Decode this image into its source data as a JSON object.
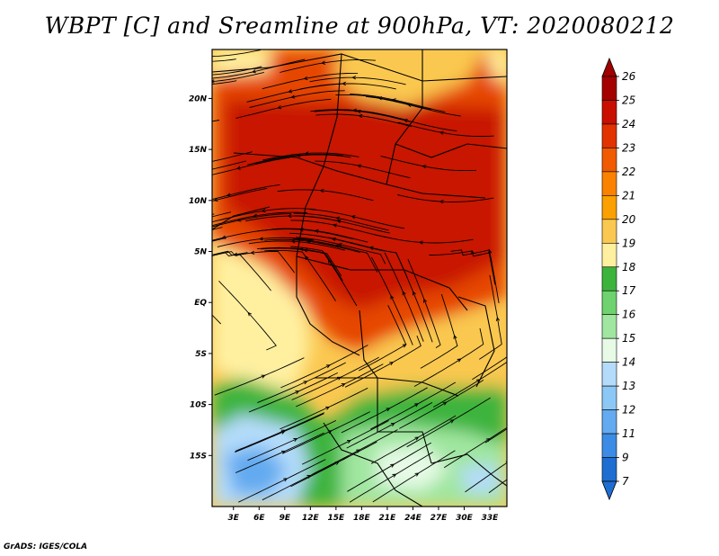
{
  "title": "WBPT [C] and Sreamline at 900hPa, VT: 2020080212",
  "credit": "GrADS: IGES/COLA",
  "map": {
    "lat_labels": [
      "20N",
      "15N",
      "10N",
      "5N",
      "EQ",
      "5S",
      "10S",
      "15S"
    ],
    "lat_values": [
      20,
      15,
      10,
      5,
      0,
      -5,
      -10,
      -15
    ],
    "lon_labels": [
      "3E",
      "6E",
      "9E",
      "12E",
      "15E",
      "18E",
      "21E",
      "24E",
      "27E",
      "30E",
      "33E"
    ],
    "lon_values": [
      3,
      6,
      9,
      12,
      15,
      18,
      21,
      24,
      27,
      30,
      33
    ],
    "lon_range": [
      0.5,
      35
    ],
    "lat_range": [
      -20,
      24.8
    ]
  },
  "colorbar": {
    "labels": [
      "26",
      "25",
      "24",
      "23",
      "22",
      "21",
      "20",
      "19",
      "18",
      "17",
      "16",
      "15",
      "14",
      "13",
      "12",
      "11",
      "9",
      "7"
    ],
    "colors": [
      "#a50000",
      "#c80f00",
      "#e13200",
      "#f05a00",
      "#fa8200",
      "#faa000",
      "#fac850",
      "#fff0a0",
      "#3cb43c",
      "#6ed26e",
      "#a0e6a0",
      "#e6fae6",
      "#b4dcfa",
      "#8cc8f5",
      "#64aaf0",
      "#3c8ce6",
      "#1e6ed2"
    ],
    "tip_colors": [
      "#a00000",
      "#1e6ed2"
    ]
  }
}
